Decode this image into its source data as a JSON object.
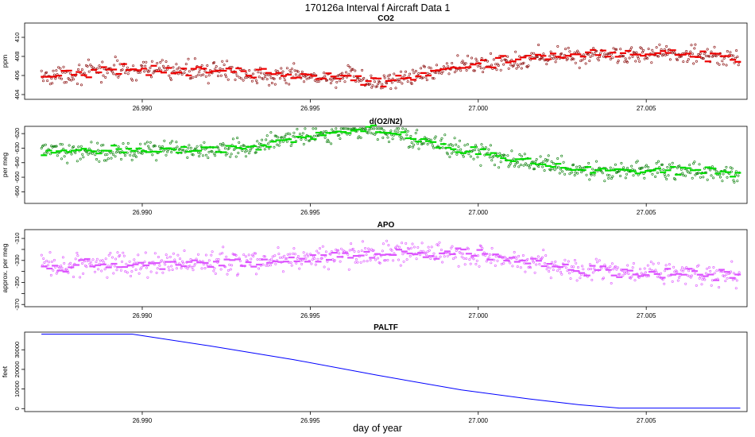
{
  "figure": {
    "title": "170126a   Interval f Aircraft Data 1",
    "xlabel": "day of year"
  },
  "chart_data": [
    {
      "type": "scatter",
      "title": "CO2",
      "ylabel": "ppm",
      "color": "#ee0000",
      "xlim": [
        26.9865,
        27.008
      ],
      "ylim": [
        403.5,
        411.5
      ],
      "xticks": [
        26.99,
        26.995,
        27.0,
        27.005
      ],
      "xtick_labels": [
        "26.990",
        "26.995",
        "27.000",
        "27.005"
      ],
      "yticks": [
        404,
        406,
        408,
        410
      ],
      "ytick_labels": [
        "404",
        "406",
        "408",
        "410"
      ],
      "x_start": 26.987,
      "x_end": 27.0078,
      "trend_x": [
        26.987,
        26.989,
        26.992,
        26.995,
        26.9962,
        26.9968,
        26.998,
        26.999,
        27.0,
        27.002,
        27.004,
        27.006,
        27.0078
      ],
      "trend_y": [
        405.8,
        406.6,
        406.5,
        405.8,
        405.8,
        405.2,
        405.8,
        406.8,
        407.2,
        407.9,
        408.3,
        408.2,
        407.8
      ],
      "noise": 0.7,
      "n_points": 700
    },
    {
      "type": "scatter",
      "title": "d(O2/N2)",
      "ylabel": "per meg",
      "color": "#00dd00",
      "xlim": [
        26.9865,
        27.008
      ],
      "ylim": [
        -668,
        -615
      ],
      "xticks": [
        26.99,
        26.995,
        27.0,
        27.005
      ],
      "xtick_labels": [
        "26.990",
        "26.995",
        "27.000",
        "27.005"
      ],
      "yticks": [
        -620,
        -630,
        -640,
        -650,
        -660
      ],
      "ytick_labels": [
        "-620",
        "-630",
        "-640",
        "-650",
        "-660"
      ],
      "x_start": 26.987,
      "x_end": 27.0078,
      "trend_x": [
        26.987,
        26.99,
        26.993,
        26.995,
        26.9968,
        26.999,
        27.001,
        27.003,
        27.006,
        27.0078
      ],
      "trend_y": [
        -632,
        -632,
        -630,
        -622,
        -617,
        -628,
        -638,
        -645,
        -645,
        -648
      ],
      "noise": 4.5,
      "n_points": 700
    },
    {
      "type": "scatter",
      "title": "APO",
      "ylabel": "approx. per meg",
      "color": "#dd55ff",
      "xlim": [
        26.9865,
        27.008
      ],
      "ylim": [
        -372,
        -302
      ],
      "xticks": [
        26.99,
        26.995,
        27.0,
        27.005
      ],
      "xtick_labels": [
        "26.990",
        "26.995",
        "27.000",
        "27.005"
      ],
      "yticks": [
        -310,
        -330,
        -350,
        -370
      ],
      "ytick_labels": [
        "-310",
        "-330",
        "-350",
        "-370"
      ],
      "minor_yticks": [
        -320,
        -340,
        -360
      ],
      "x_start": 26.987,
      "x_end": 27.0078,
      "trend_x": [
        26.987,
        26.99,
        26.993,
        26.996,
        26.9985,
        27.0,
        27.003,
        27.006,
        27.0078
      ],
      "trend_y": [
        -335,
        -333,
        -332,
        -325,
        -323,
        -326,
        -338,
        -342,
        -344
      ],
      "noise": 7.5,
      "n_points": 650
    },
    {
      "type": "line",
      "title": "PALTF",
      "ylabel": "feet",
      "color": "#0000ff",
      "xlim": [
        26.9865,
        27.008
      ],
      "ylim": [
        -1500,
        39000
      ],
      "xticks": [
        26.99,
        26.995,
        27.0,
        27.005
      ],
      "xtick_labels": [
        "26.990",
        "26.995",
        "27.000",
        "27.005"
      ],
      "yticks": [
        0,
        10000,
        20000,
        30000
      ],
      "ytick_labels": [
        "0",
        "10000",
        "20000",
        "30000"
      ],
      "x": [
        26.987,
        26.9897,
        26.992,
        26.9945,
        26.997,
        26.9995,
        27.0015,
        27.003,
        27.0042,
        27.006,
        27.0078
      ],
      "y": [
        38000,
        38000,
        32000,
        25000,
        17000,
        9500,
        5000,
        2000,
        300,
        300,
        300
      ]
    }
  ]
}
